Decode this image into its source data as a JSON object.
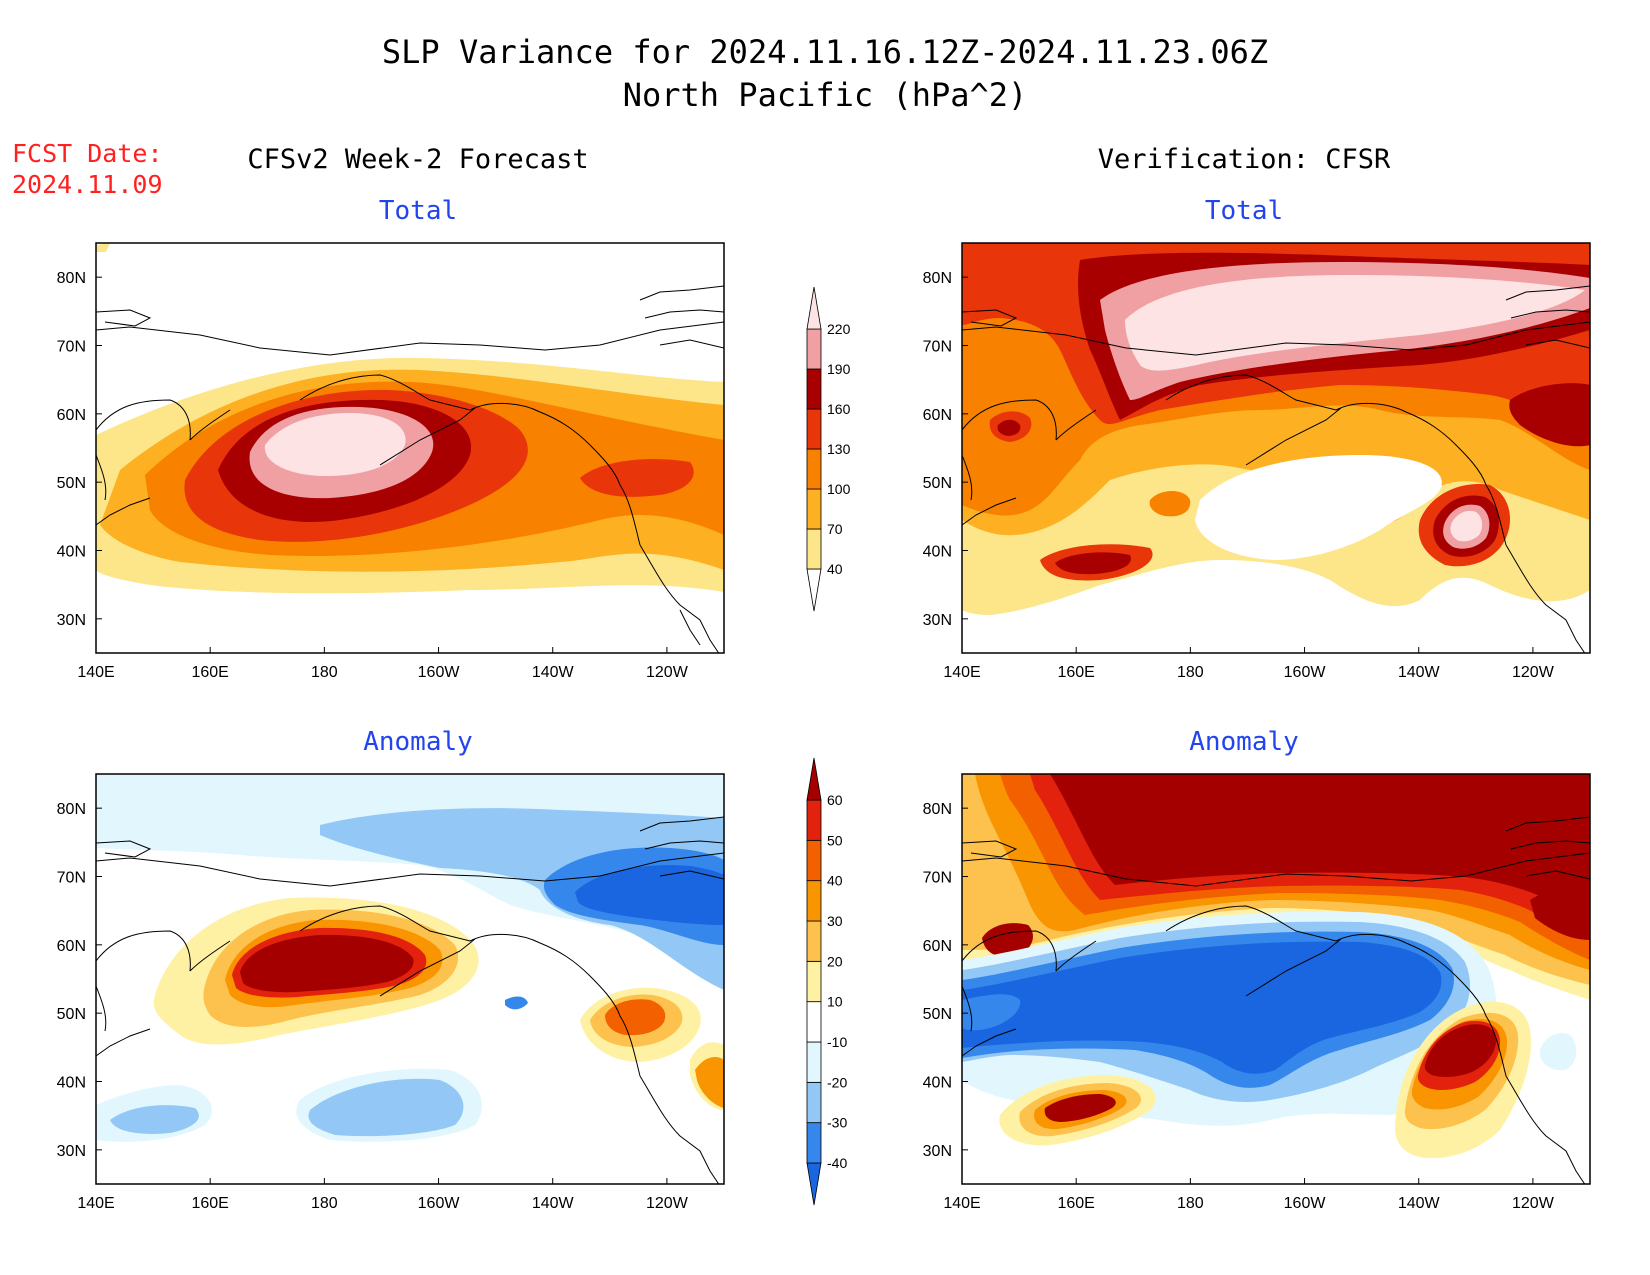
{
  "header": {
    "title_line1": "SLP Variance for 2024.11.16.12Z-2024.11.23.06Z",
    "title_line2": "North Pacific (hPa^2)",
    "fcst_label": "FCST Date:",
    "fcst_date": "2024.11.09",
    "left_column_title": "CFSv2 Week-2 Forecast",
    "right_column_title": "Verification: CFSR"
  },
  "panels": [
    {
      "id": "fcst-total",
      "label": "Total"
    },
    {
      "id": "verif-total",
      "label": "Total"
    },
    {
      "id": "fcst-anomaly",
      "label": "Anomaly"
    },
    {
      "id": "verif-anomaly",
      "label": "Anomaly"
    }
  ],
  "axes": {
    "lon_range": [
      140,
      250
    ],
    "lat_range": [
      25,
      85
    ],
    "lon_ticks": [
      {
        "value": 140,
        "label": "140E"
      },
      {
        "value": 160,
        "label": "160E"
      },
      {
        "value": 180,
        "label": "180"
      },
      {
        "value": 200,
        "label": "160W"
      },
      {
        "value": 220,
        "label": "140W"
      },
      {
        "value": 240,
        "label": "120W"
      }
    ],
    "lat_ticks": [
      {
        "value": 30,
        "label": "30N"
      },
      {
        "value": 40,
        "label": "40N"
      },
      {
        "value": 50,
        "label": "50N"
      },
      {
        "value": 60,
        "label": "60N"
      },
      {
        "value": 70,
        "label": "70N"
      },
      {
        "value": 80,
        "label": "80N"
      }
    ]
  },
  "colorbars": {
    "total": {
      "levels": [
        "40",
        "70",
        "100",
        "130",
        "160",
        "190",
        "220"
      ],
      "colors": [
        "#ffffff",
        "#fde68a",
        "#fdb022",
        "#f88200",
        "#e8360a",
        "#a80000",
        "#f09fa3",
        "#fde3e3"
      ]
    },
    "anomaly": {
      "levels": [
        "-40",
        "-30",
        "-20",
        "-10",
        "10",
        "20",
        "30",
        "40",
        "50",
        "60"
      ],
      "colors": [
        "#1966e0",
        "#3687ec",
        "#92c7f6",
        "#e2f7fd",
        "#ffffff",
        "#fff1a3",
        "#fdc24d",
        "#f99500",
        "#f26000",
        "#e2220c",
        "#a50000"
      ]
    }
  }
}
